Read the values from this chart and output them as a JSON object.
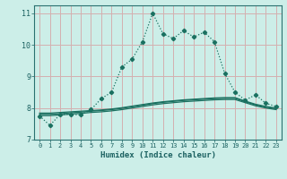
{
  "xlabel": "Humidex (Indice chaleur)",
  "bg_color": "#cceee8",
  "grid_color": "#d4b0b0",
  "line_color": "#1a7060",
  "xlim": [
    -0.5,
    23.5
  ],
  "ylim": [
    7.0,
    11.25
  ],
  "yticks": [
    7,
    8,
    9,
    10,
    11
  ],
  "xticks": [
    0,
    1,
    2,
    3,
    4,
    5,
    6,
    7,
    8,
    9,
    10,
    11,
    12,
    13,
    14,
    15,
    16,
    17,
    18,
    19,
    20,
    21,
    22,
    23
  ],
  "main_x": [
    0,
    1,
    2,
    3,
    4,
    5,
    6,
    7,
    8,
    9,
    10,
    11,
    12,
    13,
    14,
    15,
    16,
    17,
    18,
    19,
    20,
    21,
    22,
    23
  ],
  "main_y": [
    7.75,
    7.45,
    7.8,
    7.8,
    7.78,
    7.95,
    8.3,
    8.5,
    9.3,
    9.55,
    10.1,
    11.0,
    10.35,
    10.2,
    10.45,
    10.25,
    10.4,
    10.1,
    9.1,
    8.5,
    8.25,
    8.42,
    8.15,
    8.05
  ],
  "line2_x": [
    0,
    1,
    2,
    3,
    4,
    5,
    6,
    7,
    8,
    9,
    10,
    11,
    12,
    13,
    14,
    15,
    16,
    17,
    18,
    19,
    20,
    21,
    22,
    23
  ],
  "line2_y": [
    7.84,
    7.84,
    7.86,
    7.88,
    7.9,
    7.92,
    7.94,
    7.97,
    8.01,
    8.06,
    8.11,
    8.16,
    8.2,
    8.23,
    8.26,
    8.28,
    8.3,
    8.32,
    8.33,
    8.33,
    8.22,
    8.12,
    8.05,
    8.0
  ],
  "line3_x": [
    0,
    1,
    2,
    3,
    4,
    5,
    6,
    7,
    8,
    9,
    10,
    11,
    12,
    13,
    14,
    15,
    16,
    17,
    18,
    19,
    20,
    21,
    22,
    23
  ],
  "line3_y": [
    7.8,
    7.8,
    7.82,
    7.85,
    7.87,
    7.9,
    7.92,
    7.95,
    7.99,
    8.04,
    8.09,
    8.14,
    8.18,
    8.21,
    8.24,
    8.26,
    8.28,
    8.3,
    8.31,
    8.31,
    8.2,
    8.1,
    8.03,
    7.98
  ],
  "line4_x": [
    0,
    1,
    2,
    3,
    4,
    5,
    6,
    7,
    8,
    9,
    10,
    11,
    12,
    13,
    14,
    15,
    16,
    17,
    18,
    19,
    20,
    21,
    22,
    23
  ],
  "line4_y": [
    7.76,
    7.76,
    7.78,
    7.81,
    7.83,
    7.86,
    7.88,
    7.91,
    7.95,
    8.0,
    8.05,
    8.1,
    8.14,
    8.17,
    8.2,
    8.22,
    8.24,
    8.26,
    8.27,
    8.27,
    8.17,
    8.07,
    8.0,
    7.95
  ]
}
